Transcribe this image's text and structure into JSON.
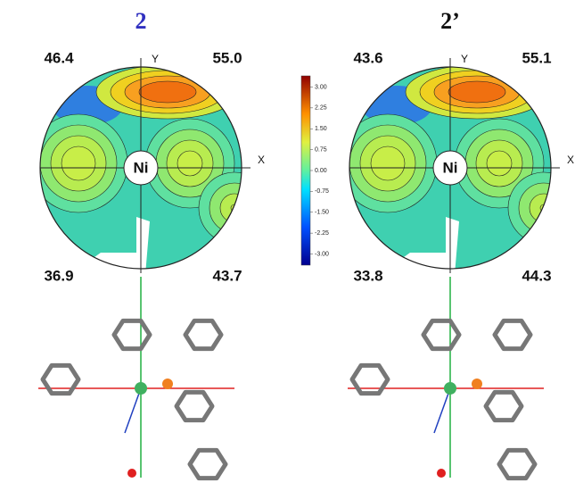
{
  "panels": [
    {
      "title": "2",
      "center_label": "Ni",
      "x_axis_label": "X",
      "y_axis_label": "Y",
      "quadrants": {
        "top_left": "46.4",
        "top_right": "55.0",
        "bottom_left": "36.9",
        "bottom_right": "43.7"
      }
    },
    {
      "title": "2’",
      "center_label": "Ni",
      "x_axis_label": "X",
      "y_axis_label": "Y",
      "quadrants": {
        "top_left": "43.6",
        "top_right": "55.1",
        "bottom_left": "33.8",
        "bottom_right": "44.3"
      }
    }
  ],
  "colorbar": {
    "range": [
      -3.4,
      3.4
    ],
    "ticks": [
      {
        "value": 3,
        "label": "3.00"
      },
      {
        "value": 2.25,
        "label": "2.25"
      },
      {
        "value": 1.5,
        "label": "1.50"
      },
      {
        "value": 0.75,
        "label": "0.75"
      },
      {
        "value": 0,
        "label": "0.00"
      },
      {
        "value": -0.75,
        "label": "-0.75"
      },
      {
        "value": -1.5,
        "label": "-1.50"
      },
      {
        "value": -2.25,
        "label": "-2.25"
      },
      {
        "value": -3,
        "label": "-3.00"
      }
    ]
  }
}
